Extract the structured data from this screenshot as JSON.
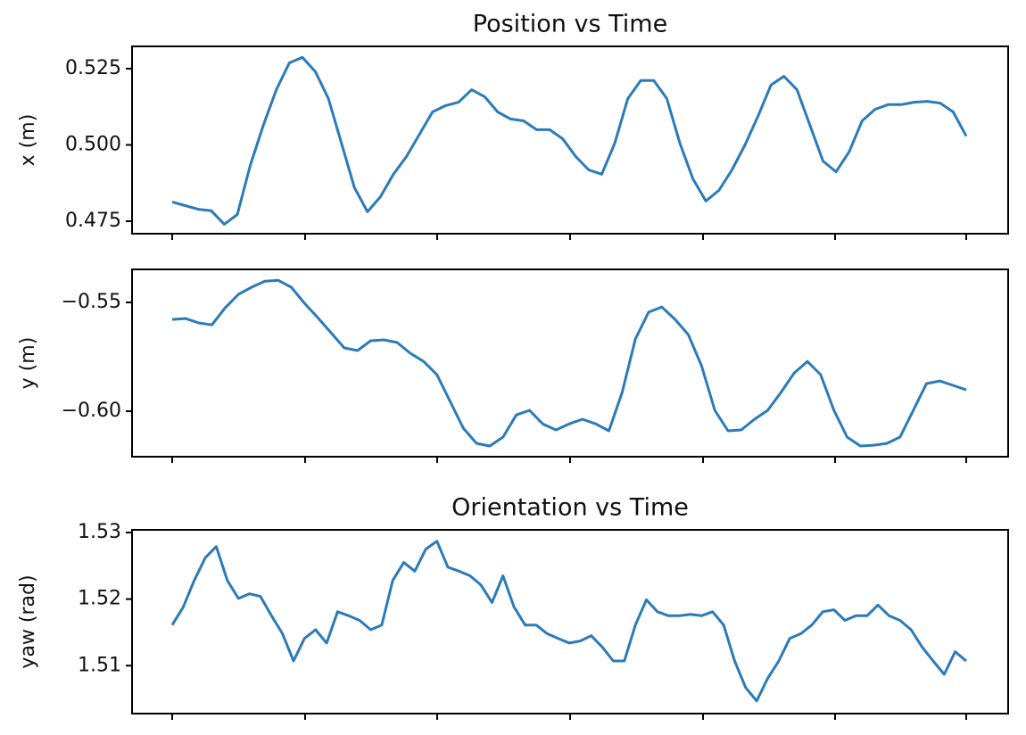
{
  "chart_data": [
    {
      "type": "line",
      "title": "Position vs Time",
      "y_label": "x (m)",
      "color": "#2b7bba",
      "values": [
        0.4813,
        0.4801,
        0.4789,
        0.4784,
        0.474,
        0.4772,
        0.4933,
        0.5064,
        0.5181,
        0.5269,
        0.5287,
        0.524,
        0.5152,
        0.5006,
        0.486,
        0.4781,
        0.483,
        0.4904,
        0.4962,
        0.5035,
        0.5108,
        0.5129,
        0.514,
        0.5181,
        0.5158,
        0.5108,
        0.5085,
        0.5079,
        0.505,
        0.505,
        0.502,
        0.4962,
        0.4918,
        0.4904,
        0.5006,
        0.5152,
        0.5211,
        0.5211,
        0.5152,
        0.5006,
        0.4889,
        0.4816,
        0.4851,
        0.4918,
        0.5,
        0.5094,
        0.5196,
        0.5225,
        0.5181,
        0.5064,
        0.4947,
        0.4912,
        0.4977,
        0.5079,
        0.5117,
        0.5132,
        0.5132,
        0.514,
        0.5143,
        0.5137,
        0.5108,
        0.5029
      ],
      "ylim": [
        0.4709,
        0.5323
      ],
      "yticks": [
        0.475,
        {
          "value": 0.5,
          "label": "0.500"
        },
        0.525
      ]
    },
    {
      "type": "line",
      "y_label": "y (m)",
      "color": "#2b7bba",
      "values": [
        -0.5578,
        -0.5574,
        -0.5594,
        -0.5603,
        -0.5525,
        -0.5463,
        -0.543,
        -0.5402,
        -0.5398,
        -0.543,
        -0.5504,
        -0.557,
        -0.5639,
        -0.5709,
        -0.5721,
        -0.5676,
        -0.5672,
        -0.5684,
        -0.5734,
        -0.5771,
        -0.5832,
        -0.5955,
        -0.6078,
        -0.6148,
        -0.616,
        -0.6119,
        -0.6017,
        -0.5996,
        -0.6058,
        -0.6086,
        -0.6058,
        -0.6037,
        -0.6058,
        -0.609,
        -0.5914,
        -0.5668,
        -0.5545,
        -0.5521,
        -0.5578,
        -0.5648,
        -0.5791,
        -0.5996,
        -0.609,
        -0.6086,
        -0.6037,
        -0.5996,
        -0.5914,
        -0.5824,
        -0.5771,
        -0.5832,
        -0.5996,
        -0.6119,
        -0.616,
        -0.6156,
        -0.6148,
        -0.6119,
        -0.5996,
        -0.5873,
        -0.5861,
        -0.5881,
        -0.5902
      ],
      "ylim": [
        -0.6209,
        -0.5348
      ],
      "yticks": [
        {
          "value": -0.6,
          "label": "−0.60"
        },
        {
          "value": -0.55,
          "label": "−0.55"
        }
      ]
    },
    {
      "type": "line",
      "title": "Orientation vs Time",
      "y_label": "yaw (rad)",
      "color": "#2b7bba",
      "values": [
        1.5161,
        1.5188,
        1.5228,
        1.5262,
        1.5279,
        1.5228,
        1.5201,
        1.5208,
        1.5204,
        1.5175,
        1.5148,
        1.5107,
        1.5141,
        1.5154,
        1.5134,
        1.5181,
        1.5175,
        1.5168,
        1.5154,
        1.5161,
        1.5228,
        1.5255,
        1.5242,
        1.5275,
        1.5287,
        1.5248,
        1.5242,
        1.5235,
        1.5221,
        1.5195,
        1.5235,
        1.5188,
        1.5161,
        1.5161,
        1.5148,
        1.5141,
        1.5134,
        1.5137,
        1.5145,
        1.5128,
        1.5107,
        1.5107,
        1.5161,
        1.5199,
        1.5181,
        1.5175,
        1.5175,
        1.5177,
        1.5175,
        1.5181,
        1.5161,
        1.5107,
        1.5067,
        1.5047,
        1.5081,
        1.5107,
        1.5141,
        1.5148,
        1.5161,
        1.5181,
        1.5184,
        1.5168,
        1.5175,
        1.5175,
        1.5191,
        1.5175,
        1.5168,
        1.5154,
        1.5128,
        1.5107,
        1.5087,
        1.5121,
        1.5107
      ],
      "ylim": [
        1.5028,
        1.5304
      ],
      "yticks": [
        1.51,
        1.52,
        1.53
      ]
    }
  ]
}
